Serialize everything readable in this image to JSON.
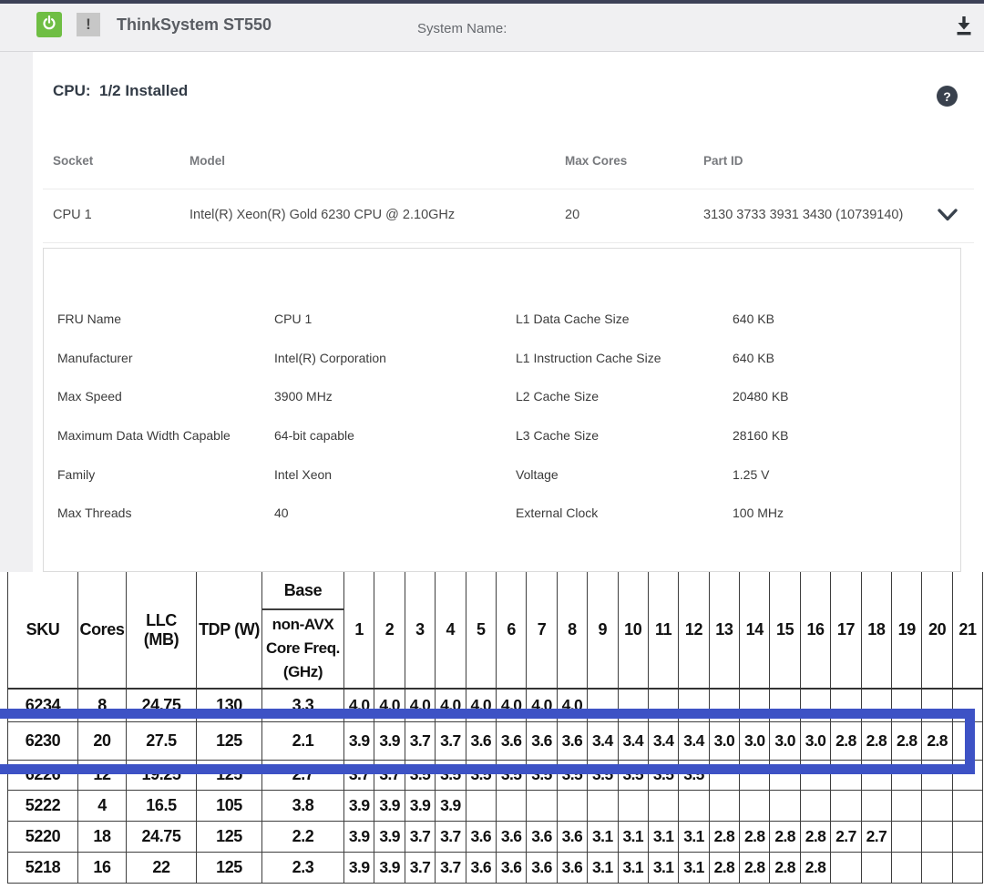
{
  "top_bar": {
    "title": "ThinkSystem ST550",
    "system_name_label": "System Name:",
    "alert_badge": "!",
    "accent_green": "#6fbe44"
  },
  "cpu_panel": {
    "heading": "CPU:  1/2 Installed",
    "help_glyph": "?",
    "table": {
      "columns": [
        "Socket",
        "Model",
        "Max Cores",
        "Part ID"
      ],
      "row": {
        "socket": "CPU 1",
        "model": "Intel(R) Xeon(R) Gold 6230 CPU @ 2.10GHz",
        "max_cores": "20",
        "part_id": "3130 3733 3931 3430 (10739140)"
      }
    },
    "details": {
      "left": [
        {
          "label": "FRU Name",
          "value": "CPU 1"
        },
        {
          "label": "Manufacturer",
          "value": "Intel(R) Corporation"
        },
        {
          "label": "Max Speed",
          "value": "3900 MHz"
        },
        {
          "label": "Maximum Data Width Capable",
          "value": "64-bit capable"
        },
        {
          "label": "Family",
          "value": "Intel Xeon"
        },
        {
          "label": "Max Threads",
          "value": "40"
        }
      ],
      "right": [
        {
          "label": "L1 Data Cache Size",
          "value": "640 KB"
        },
        {
          "label": "L1 Instruction Cache Size",
          "value": "640 KB"
        },
        {
          "label": "L2 Cache Size",
          "value": "20480 KB"
        },
        {
          "label": "L3 Cache Size",
          "value": "28160 KB"
        },
        {
          "label": "Voltage",
          "value": "1.25 V"
        },
        {
          "label": "External Clock",
          "value": "100 MHz"
        }
      ]
    }
  },
  "spec_table": {
    "highlight_color": "#3d52c5",
    "highlighted_sku": "6230",
    "headers": {
      "sku": "SKU",
      "cores": "Cores",
      "llc": "LLC (MB)",
      "tdp": "TDP (W)",
      "base_top": "Base",
      "base_lines": [
        "non-AVX",
        "Core Freq.",
        "(GHz)"
      ],
      "core_counts": [
        "1",
        "2",
        "3",
        "4",
        "5",
        "6",
        "7",
        "8",
        "9",
        "10",
        "11",
        "12",
        "13",
        "14",
        "15",
        "16",
        "17",
        "18",
        "19",
        "20",
        "21"
      ]
    },
    "rows": [
      {
        "sku": "6234",
        "cores": "8",
        "llc": "24.75",
        "tdp": "130",
        "base": "3.3",
        "freqs": [
          "4.0",
          "4.0",
          "4.0",
          "4.0",
          "4.0",
          "4.0",
          "4.0",
          "4.0"
        ]
      },
      {
        "sku": "6230",
        "cores": "20",
        "llc": "27.5",
        "tdp": "125",
        "base": "2.1",
        "freqs": [
          "3.9",
          "3.9",
          "3.7",
          "3.7",
          "3.6",
          "3.6",
          "3.6",
          "3.6",
          "3.4",
          "3.4",
          "3.4",
          "3.4",
          "3.0",
          "3.0",
          "3.0",
          "3.0",
          "2.8",
          "2.8",
          "2.8",
          "2.8"
        ]
      },
      {
        "sku": "6226",
        "cores": "12",
        "llc": "19.25",
        "tdp": "125",
        "base": "2.7",
        "freqs": [
          "3.7",
          "3.7",
          "3.5",
          "3.5",
          "3.5",
          "3.5",
          "3.5",
          "3.5",
          "3.5",
          "3.5",
          "3.5",
          "3.5"
        ]
      },
      {
        "sku": "5222",
        "cores": "4",
        "llc": "16.5",
        "tdp": "105",
        "base": "3.8",
        "freqs": [
          "3.9",
          "3.9",
          "3.9",
          "3.9"
        ]
      },
      {
        "sku": "5220",
        "cores": "18",
        "llc": "24.75",
        "tdp": "125",
        "base": "2.2",
        "freqs": [
          "3.9",
          "3.9",
          "3.7",
          "3.7",
          "3.6",
          "3.6",
          "3.6",
          "3.6",
          "3.1",
          "3.1",
          "3.1",
          "3.1",
          "2.8",
          "2.8",
          "2.8",
          "2.8",
          "2.7",
          "2.7"
        ]
      },
      {
        "sku": "5218",
        "cores": "16",
        "llc": "22",
        "tdp": "125",
        "base": "2.3",
        "freqs": [
          "3.9",
          "3.9",
          "3.7",
          "3.7",
          "3.6",
          "3.6",
          "3.6",
          "3.6",
          "3.1",
          "3.1",
          "3.1",
          "3.1",
          "2.8",
          "2.8",
          "2.8",
          "2.8"
        ]
      }
    ]
  }
}
